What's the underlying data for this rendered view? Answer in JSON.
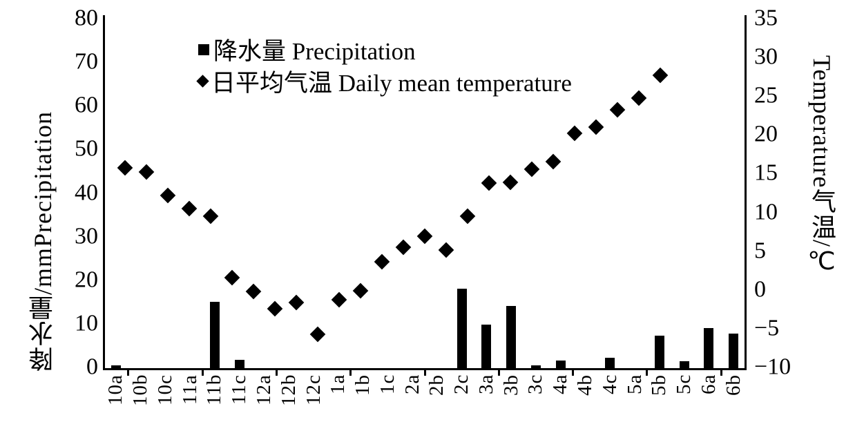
{
  "chart_data": {
    "type": "combo-bar-scatter",
    "title": "",
    "categories": [
      "10a",
      "10b",
      "10c",
      "11a",
      "11b",
      "11c",
      "12a",
      "12b",
      "12c",
      "1a",
      "1b",
      "1c",
      "2a",
      "2b",
      "2c",
      "3a",
      "3b",
      "3c",
      "4a",
      "4b",
      "4c",
      "5a",
      "5b",
      "5c",
      "6a",
      "6b"
    ],
    "series": [
      {
        "name": "降水量 Precipitation",
        "type": "bar",
        "axis": "left",
        "marker": "filled-square",
        "values": [
          0.6,
          0,
          0,
          0,
          15.2,
          1.9,
          0,
          0,
          0,
          0,
          0,
          0,
          0,
          0,
          18.2,
          10,
          14.2,
          0.6,
          1.7,
          0,
          2.4,
          0,
          7.4,
          1.6,
          9.2,
          8
        ]
      },
      {
        "name": "日平均气温 Daily mean temperature",
        "type": "scatter",
        "axis": "right",
        "marker": "filled-diamond",
        "values": [
          15.8,
          15.3,
          12.3,
          10.6,
          9.6,
          1.7,
          -0.1,
          -2.3,
          -1.5,
          -5.6,
          -1.2,
          0,
          3.7,
          5.6,
          7,
          5.2,
          9.6,
          13.9,
          14,
          15.7,
          16.6,
          20.3,
          21.1,
          23.3,
          24.8,
          27.8
        ]
      }
    ],
    "left_axis": {
      "title_lines": [
        "降水量/mm",
        "Precipitation"
      ],
      "min": 0,
      "max": 80,
      "step": 10,
      "ticks": [
        80,
        70,
        60,
        50,
        40,
        30,
        20,
        10,
        0
      ]
    },
    "right_axis": {
      "title_lines": [
        "气温/℃",
        "Temperature"
      ],
      "min": -10,
      "max": 35,
      "step": 5,
      "ticks": [
        35,
        30,
        25,
        20,
        15,
        10,
        5,
        0,
        -5,
        -10
      ]
    },
    "legend": [
      {
        "marker": "filled-square",
        "label": "降水量 Precipitation"
      },
      {
        "marker": "filled-diamond",
        "label": "日平均气温 Daily mean temperature"
      }
    ],
    "grid": false,
    "legend_position": "top-center-inside",
    "colors": {
      "ink": "#000000",
      "background": "#ffffff"
    }
  }
}
